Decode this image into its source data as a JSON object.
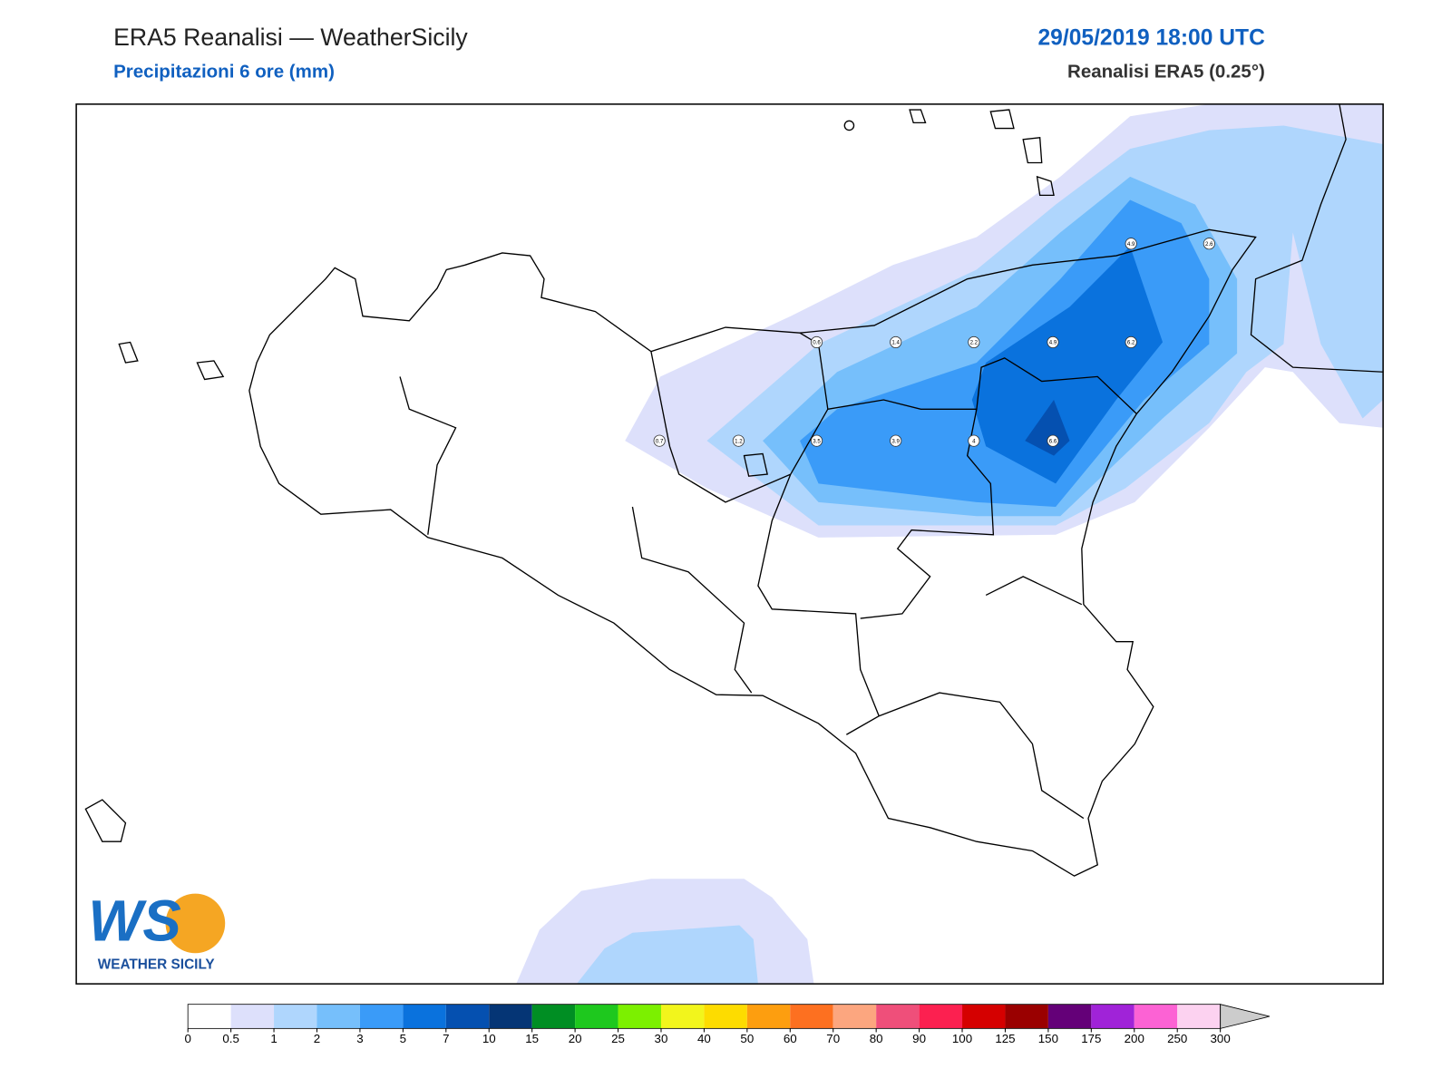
{
  "header": {
    "title": "ERA5 Reanalisi — WeatherSicily",
    "subtitle": "Precipitazioni 6 ore (mm)",
    "datetime": "29/05/2019 18:00 UTC",
    "source": "Reanalisi ERA5 (0.25°)"
  },
  "stations": {
    "values": [
      0.6,
      1.4,
      2.2,
      4.9,
      6.2,
      4.9,
      2.6,
      0.7,
      1.2,
      3.5,
      3.9,
      4.0,
      6.6
    ]
  },
  "colorbar": {
    "ticks": [
      0,
      0.5,
      1,
      2,
      3,
      5,
      7,
      10,
      15,
      20,
      25,
      30,
      40,
      50,
      60,
      70,
      80,
      90,
      100,
      125,
      150,
      175,
      200,
      250,
      300
    ],
    "colors": [
      "#ffffff",
      "#dde0fb",
      "#afd6fd",
      "#76bffb",
      "#3a9bf8",
      "#0a72dd",
      "#0550b0",
      "#053575",
      "#008e23",
      "#1ec81e",
      "#7cf000",
      "#f2f51c",
      "#fddc00",
      "#fd9e0f",
      "#fd7020",
      "#fca67f",
      "#ef4f7a",
      "#fc2050",
      "#d50000",
      "#9a0000",
      "#640078",
      "#a023d8",
      "#fc62d4",
      "#fcd2f0"
    ],
    "extend_color": "#cccccc"
  },
  "logo": {
    "mark": "WS",
    "text": "WEATHER SICILY"
  }
}
